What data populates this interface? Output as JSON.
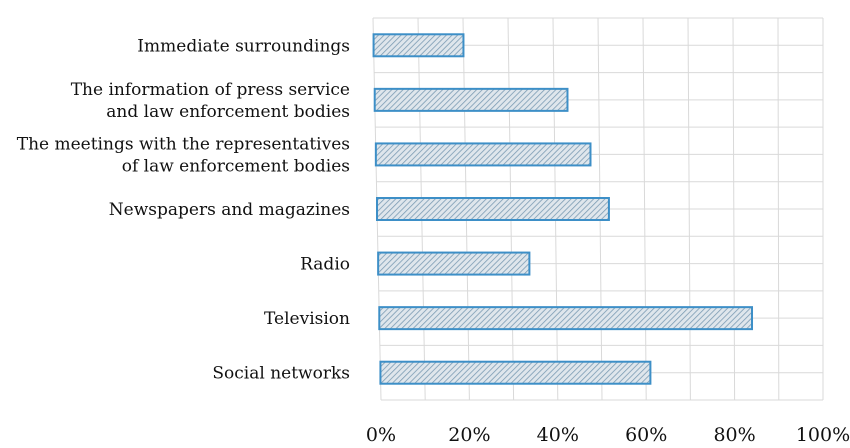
{
  "chart_data": {
    "type": "bar",
    "orientation": "horizontal",
    "categories": [
      [
        "Immediate surroundings"
      ],
      [
        "The information of press service",
        "and law enforcement bodies"
      ],
      [
        "The meetings with the representatives",
        "of law enforcement bodies"
      ],
      [
        "Newspapers and magazines"
      ],
      [
        "Radio"
      ],
      [
        "Television"
      ],
      [
        "Social networks"
      ]
    ],
    "values": [
      20,
      43,
      48,
      52,
      34,
      84,
      61
    ],
    "xlim": [
      0,
      100
    ],
    "xticks": [
      0,
      20,
      40,
      60,
      80,
      100
    ],
    "xtick_labels": [
      "0%",
      "20%",
      "40%",
      "60%",
      "80%",
      "100%"
    ],
    "title": "",
    "xlabel": "",
    "ylabel": "",
    "grid": true,
    "bar_color": "#3d8fc7"
  }
}
